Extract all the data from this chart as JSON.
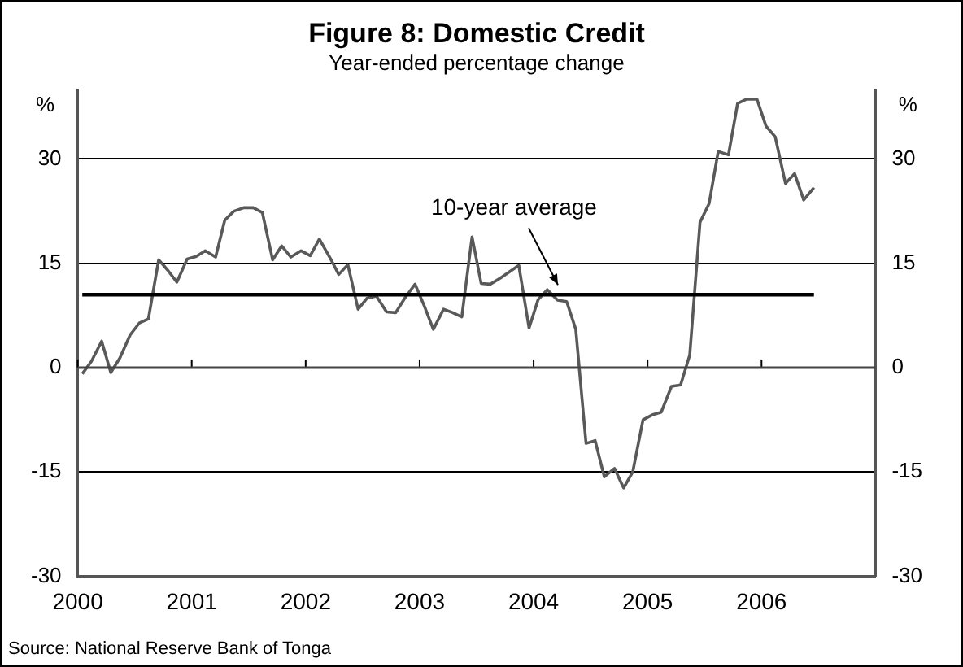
{
  "chart_data": {
    "type": "line",
    "title": "Figure 8: Domestic Credit",
    "subtitle": "Year-ended percentage change",
    "ylabel": "%",
    "y2label": "%",
    "x": [
      2000.04,
      2000.12,
      2000.21,
      2000.29,
      2000.37,
      2000.46,
      2000.54,
      2000.62,
      2000.71,
      2000.79,
      2000.87,
      2000.96,
      2001.04,
      2001.12,
      2001.21,
      2001.29,
      2001.37,
      2001.46,
      2001.54,
      2001.62,
      2001.71,
      2001.79,
      2001.87,
      2001.96,
      2002.04,
      2002.12,
      2002.21,
      2002.29,
      2002.37,
      2002.46,
      2002.54,
      2002.62,
      2002.71,
      2002.79,
      2002.87,
      2002.96,
      2003.04,
      2003.12,
      2003.21,
      2003.29,
      2003.37,
      2003.46,
      2003.54,
      2003.62,
      2003.71,
      2003.79,
      2003.87,
      2003.96,
      2004.04,
      2004.12,
      2004.21,
      2004.29,
      2004.37,
      2004.46,
      2004.54,
      2004.62,
      2004.71,
      2004.79,
      2004.87,
      2004.96,
      2005.04,
      2005.12,
      2005.21,
      2005.29,
      2005.37,
      2005.46,
      2005.54,
      2005.62,
      2005.71,
      2005.79,
      2005.87,
      2005.96,
      2006.04,
      2006.12,
      2006.21,
      2006.29,
      2006.37,
      2006.46
    ],
    "series": [
      {
        "color": "#595959",
        "values": [
          -0.9,
          0.9,
          3.8,
          -0.7,
          1.4,
          4.7,
          6.4,
          7,
          15.5,
          14,
          12.3,
          15.6,
          16,
          16.8,
          15.9,
          21.2,
          22.5,
          23,
          23,
          22.3,
          15.5,
          17.5,
          15.9,
          16.8,
          16.1,
          18.5,
          15.9,
          13.4,
          14.8,
          8.4,
          10,
          10.3,
          8,
          7.9,
          10,
          12,
          8.9,
          5.5,
          8.4,
          7.9,
          7.3,
          18.8,
          12.1,
          12,
          12.9,
          13.8,
          14.7,
          5.7,
          9.8,
          11.2,
          9.7,
          9.5,
          5.5,
          -10.9,
          -10.5,
          -15.7,
          -14.5,
          -17.3,
          -15,
          -7.5,
          -6.8,
          -6.4,
          -2.7,
          -2.5,
          1.8,
          20.9,
          23.6,
          31.1,
          30.6,
          38,
          38.6,
          38.6,
          34.7,
          33.2,
          26.5,
          27.9,
          24.1,
          25.9
        ]
      }
    ],
    "xlim": [
      2000,
      2007
    ],
    "xticks": [
      2000,
      2001,
      2002,
      2003,
      2004,
      2005,
      2006
    ],
    "ylim": [
      -30,
      40
    ],
    "yticks": [
      -30,
      -15,
      0,
      15,
      30
    ],
    "y2lim": [
      -30,
      40
    ],
    "y2ticks": [
      -30,
      -15,
      0,
      15,
      30
    ],
    "grid": "y",
    "legend": false,
    "marker": "none",
    "line_style": "solid",
    "ref_lines": [
      {
        "axis": "y",
        "value": 10.5,
        "label": "10-year average",
        "color": "#000000"
      }
    ],
    "annotations": [
      "Source: National Reserve Bank of Tonga"
    ]
  }
}
